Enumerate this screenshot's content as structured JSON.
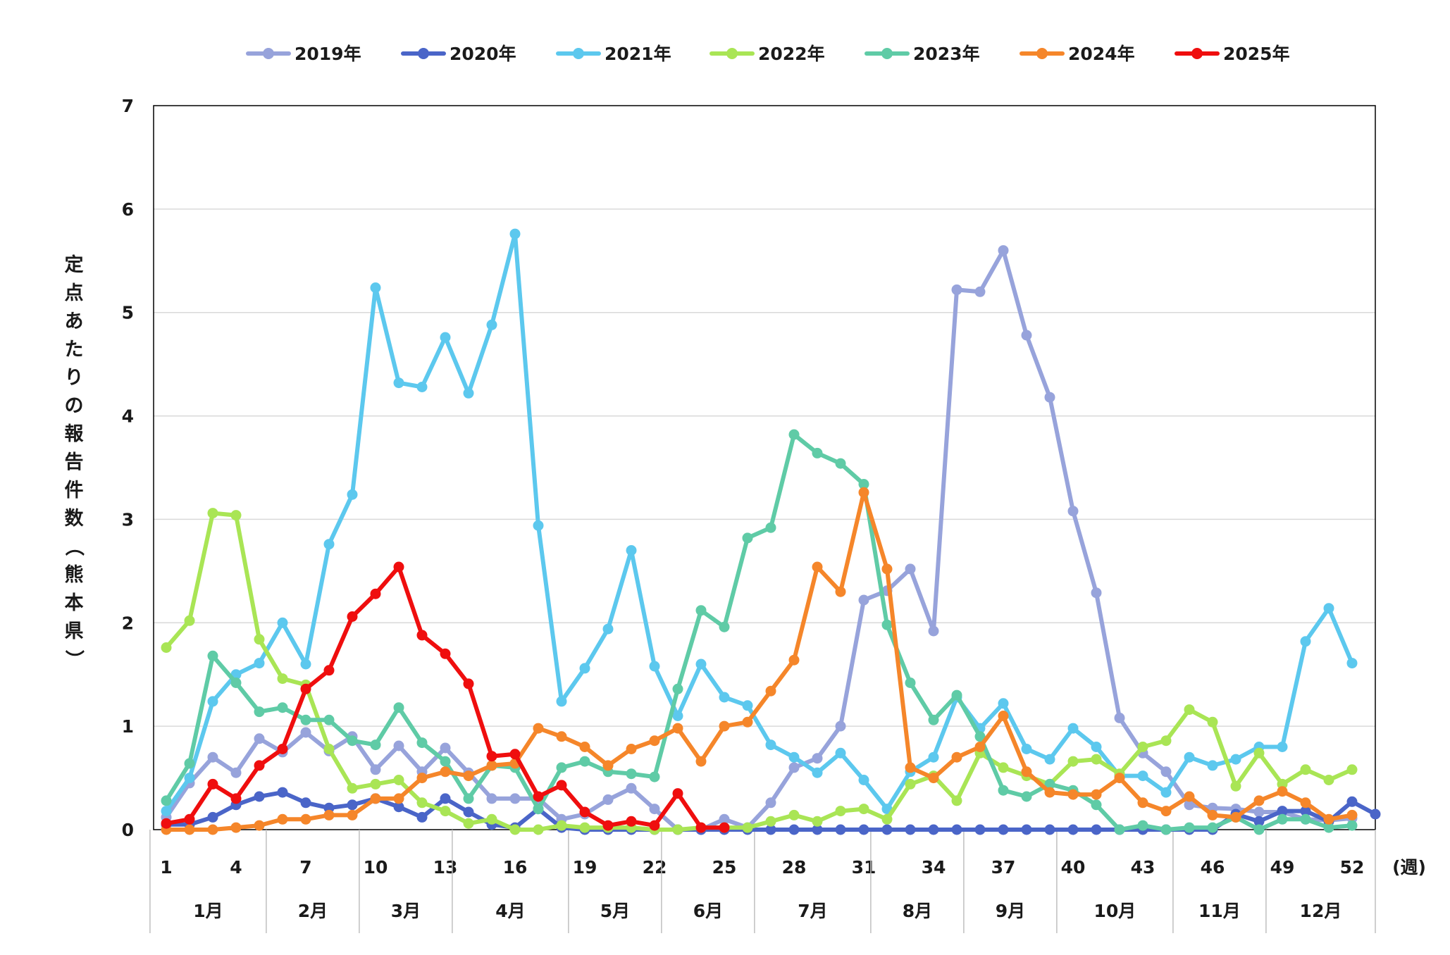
{
  "chart_data": {
    "type": "line",
    "xlabel": "(週)",
    "ylabel": "定点あたりの報告件数（熊本県）",
    "ylim": [
      0,
      7
    ],
    "yticks": [
      "0",
      "1",
      "2",
      "3",
      "4",
      "5",
      "6",
      "7"
    ],
    "x_tick_labels": [
      "1",
      "4",
      "7",
      "10",
      "13",
      "16",
      "19",
      "22",
      "25",
      "28",
      "31",
      "34",
      "37",
      "40",
      "43",
      "46",
      "49",
      "52"
    ],
    "months": [
      "1月",
      "2月",
      "3月",
      "4月",
      "5月",
      "6月",
      "7月",
      "8月",
      "9月",
      "10月",
      "11月",
      "12月"
    ],
    "grid": true,
    "legend_position": "top",
    "series": [
      {
        "name": "2019年",
        "color": "#97a3db",
        "start_week": 1,
        "values": [
          0.12,
          0.45,
          0.7,
          0.55,
          0.88,
          0.75,
          0.94,
          0.76,
          0.9,
          0.58,
          0.81,
          0.56,
          0.79,
          0.55,
          0.3,
          0.3,
          0.3,
          0.1,
          0.15,
          0.29,
          0.4,
          0.2,
          0.0,
          0.0,
          0.1,
          0.02,
          0.26,
          0.6,
          0.69,
          1.0,
          2.22,
          2.31,
          2.52,
          1.92,
          5.22,
          5.2,
          5.6,
          4.78,
          4.18,
          3.08,
          2.29,
          1.08,
          0.74,
          0.56,
          0.24,
          0.21,
          0.2,
          0.17,
          0.17,
          0.1,
          0.09,
          0.11
        ]
      },
      {
        "name": "2020年",
        "color": "#4a65c8",
        "start_week": 1,
        "values": [
          0.05,
          0.05,
          0.12,
          0.24,
          0.32,
          0.36,
          0.26,
          0.21,
          0.24,
          0.3,
          0.22,
          0.12,
          0.3,
          0.17,
          0.05,
          0.02,
          0.2,
          0.02,
          0.0,
          0.0,
          0.0,
          0.0,
          0.0,
          0.0,
          0.0,
          0.0,
          0.0,
          0.0,
          0.0,
          0.0,
          0.0,
          0.0,
          0.0,
          0.0,
          0.0,
          0.0,
          0.0,
          0.0,
          0.0,
          0.0,
          0.0,
          0.0,
          0.0,
          0.0,
          0.0,
          0.0,
          0.15,
          0.08,
          0.18,
          0.18,
          0.08,
          0.27,
          0.15
        ]
      },
      {
        "name": "2021年",
        "color": "#5cc8ee",
        "start_week": 1,
        "values": [
          0.18,
          0.5,
          1.24,
          1.5,
          1.61,
          2.0,
          1.6,
          2.76,
          3.24,
          5.24,
          4.32,
          4.28,
          4.76,
          4.22,
          4.88,
          5.76,
          2.94,
          1.24,
          1.56,
          1.94,
          2.7,
          1.58,
          1.1,
          1.6,
          1.28,
          1.2,
          0.82,
          0.7,
          0.55,
          0.74,
          0.48,
          0.2,
          0.56,
          0.7,
          1.28,
          0.98,
          1.22,
          0.78,
          0.68,
          0.98,
          0.8,
          0.52,
          0.52,
          0.36,
          0.7,
          0.62,
          0.68,
          0.8,
          0.8,
          1.82,
          2.14,
          1.61
        ]
      },
      {
        "name": "2022年",
        "color": "#a9e555",
        "start_week": 1,
        "values": [
          1.76,
          2.02,
          3.06,
          3.04,
          1.84,
          1.46,
          1.4,
          0.78,
          0.4,
          0.44,
          0.48,
          0.26,
          0.18,
          0.06,
          0.1,
          0.0,
          0.0,
          0.04,
          0.02,
          0.02,
          0.02,
          0.0,
          0.0,
          0.02,
          0.02,
          0.02,
          0.08,
          0.14,
          0.08,
          0.18,
          0.2,
          0.1,
          0.44,
          0.52,
          0.28,
          0.74,
          0.6,
          0.52,
          0.44,
          0.66,
          0.68,
          0.54,
          0.8,
          0.86,
          1.16,
          1.04,
          0.42,
          0.74,
          0.44,
          0.58,
          0.48,
          0.58
        ]
      },
      {
        "name": "2023年",
        "color": "#5fcba6",
        "start_week": 1,
        "values": [
          0.28,
          0.64,
          1.68,
          1.42,
          1.14,
          1.18,
          1.06,
          1.06,
          0.86,
          0.82,
          1.18,
          0.84,
          0.66,
          0.3,
          0.62,
          0.6,
          0.2,
          0.6,
          0.66,
          0.56,
          0.54,
          0.51,
          1.36,
          2.12,
          1.96,
          2.82,
          2.92,
          3.82,
          3.64,
          3.54,
          3.34,
          1.98,
          1.42,
          1.06,
          1.3,
          0.9,
          0.38,
          0.32,
          0.44,
          0.38,
          0.24,
          0.0,
          0.04,
          0.0,
          0.02,
          0.02,
          0.12,
          0.0,
          0.1,
          0.1,
          0.02,
          0.04
        ]
      },
      {
        "name": "2024年",
        "color": "#f5862a",
        "start_week": 1,
        "values": [
          0.0,
          0.0,
          0.0,
          0.02,
          0.04,
          0.1,
          0.1,
          0.14,
          0.14,
          0.3,
          0.3,
          0.5,
          0.56,
          0.52,
          0.62,
          0.64,
          0.98,
          0.9,
          0.8,
          0.62,
          0.78,
          0.86,
          0.98,
          0.66,
          1.0,
          1.04,
          1.34,
          1.64,
          2.54,
          2.3,
          3.26,
          2.52,
          0.6,
          0.5,
          0.7,
          0.8,
          1.1,
          0.56,
          0.36,
          0.34,
          0.34,
          0.5,
          0.26,
          0.18,
          0.32,
          0.14,
          0.12,
          0.28,
          0.37,
          0.26,
          0.1,
          0.14
        ]
      },
      {
        "name": "2025年",
        "color": "#ef0e0e",
        "start_week": 1,
        "values": [
          0.06,
          0.1,
          0.44,
          0.3,
          0.62,
          0.78,
          1.36,
          1.54,
          2.06,
          2.28,
          2.54,
          1.88,
          1.7,
          1.41,
          0.71,
          0.73,
          0.32,
          0.43,
          0.17,
          0.04,
          0.08,
          0.04,
          0.35,
          0.02,
          0.02
        ]
      }
    ]
  }
}
